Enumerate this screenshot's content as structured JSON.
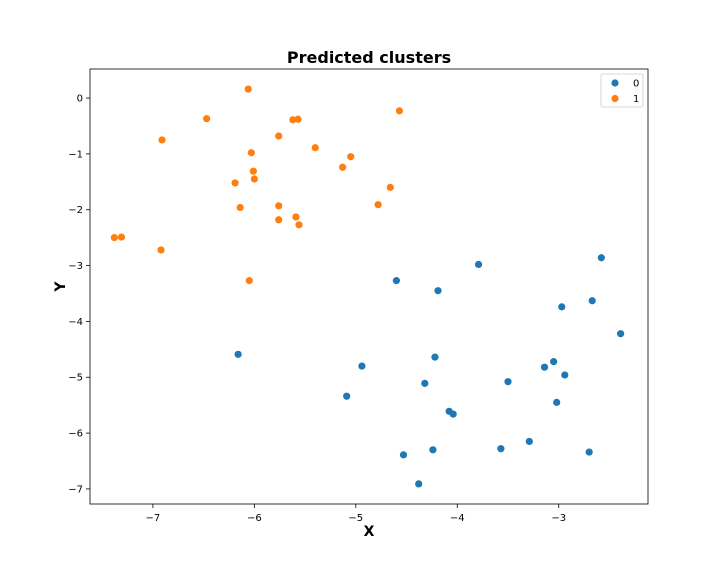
{
  "chart_data": {
    "type": "scatter",
    "title": "Predicted clusters",
    "xlabel": "X",
    "ylabel": "Y",
    "xlim": [
      -7.62,
      -2.12
    ],
    "ylim": [
      -7.27,
      0.52
    ],
    "xticks": [
      -7,
      -6,
      -5,
      -4,
      -3
    ],
    "yticks": [
      0,
      -1,
      -2,
      -3,
      -4,
      -5,
      -6,
      -7
    ],
    "xtick_labels": [
      "−7",
      "−6",
      "−5",
      "−4",
      "−3"
    ],
    "ytick_labels": [
      "0",
      "−1",
      "−2",
      "−3",
      "−4",
      "−5",
      "−6",
      "−7"
    ],
    "grid": false,
    "legend_position": "top-right",
    "series": [
      {
        "name": "0",
        "color": "#1f77b4",
        "points": [
          [
            -4.6,
            -3.27
          ],
          [
            -4.19,
            -3.45
          ],
          [
            -3.79,
            -2.98
          ],
          [
            -2.58,
            -2.86
          ],
          [
            -2.67,
            -3.63
          ],
          [
            -2.97,
            -3.74
          ],
          [
            -2.39,
            -4.22
          ],
          [
            -6.16,
            -4.59
          ],
          [
            -4.94,
            -4.8
          ],
          [
            -4.22,
            -4.64
          ],
          [
            -3.05,
            -4.72
          ],
          [
            -3.14,
            -4.82
          ],
          [
            -2.94,
            -4.96
          ],
          [
            -3.5,
            -5.08
          ],
          [
            -4.32,
            -5.11
          ],
          [
            -5.09,
            -5.34
          ],
          [
            -4.08,
            -5.61
          ],
          [
            -4.04,
            -5.66
          ],
          [
            -3.02,
            -5.45
          ],
          [
            -3.29,
            -6.15
          ],
          [
            -3.57,
            -6.28
          ],
          [
            -4.24,
            -6.3
          ],
          [
            -2.7,
            -6.34
          ],
          [
            -4.53,
            -6.39
          ],
          [
            -4.38,
            -6.91
          ]
        ]
      },
      {
        "name": "1",
        "color": "#ff7f0e",
        "points": [
          [
            -6.06,
            0.16
          ],
          [
            -4.57,
            -0.23
          ],
          [
            -6.47,
            -0.37
          ],
          [
            -5.62,
            -0.39
          ],
          [
            -5.57,
            -0.38
          ],
          [
            -6.91,
            -0.75
          ],
          [
            -5.76,
            -0.68
          ],
          [
            -5.4,
            -0.89
          ],
          [
            -6.03,
            -0.98
          ],
          [
            -5.05,
            -1.05
          ],
          [
            -5.13,
            -1.24
          ],
          [
            -6.01,
            -1.31
          ],
          [
            -6.0,
            -1.45
          ],
          [
            -6.19,
            -1.52
          ],
          [
            -4.66,
            -1.6
          ],
          [
            -4.78,
            -1.91
          ],
          [
            -6.14,
            -1.96
          ],
          [
            -5.76,
            -1.93
          ],
          [
            -5.59,
            -2.13
          ],
          [
            -5.76,
            -2.18
          ],
          [
            -5.56,
            -2.27
          ],
          [
            -7.38,
            -2.5
          ],
          [
            -7.31,
            -2.49
          ],
          [
            -6.92,
            -2.72
          ],
          [
            -6.05,
            -3.27
          ]
        ]
      }
    ]
  }
}
